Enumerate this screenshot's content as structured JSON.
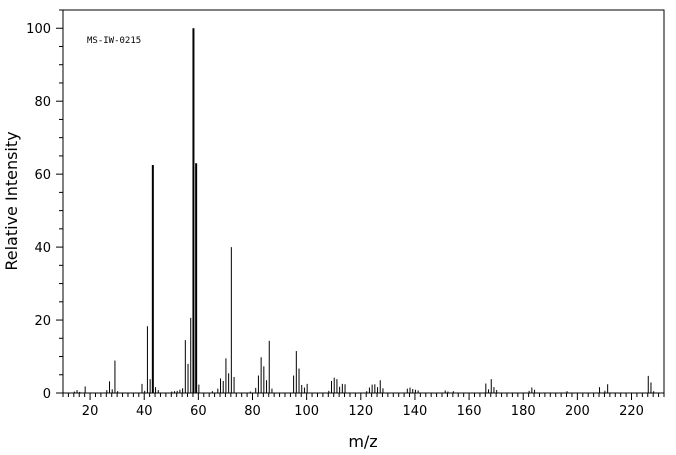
{
  "chart_data": {
    "type": "bar",
    "spectrum_code": "MS-IW-0215",
    "xlabel": "m/z",
    "ylabel": "Relative Intensity",
    "xlim": [
      10,
      232
    ],
    "ylim": [
      0,
      105
    ],
    "x_ticks": [
      20,
      40,
      60,
      80,
      100,
      120,
      140,
      160,
      180,
      200,
      220
    ],
    "y_ticks": [
      0,
      20,
      40,
      60,
      80,
      100
    ],
    "x_minor_step": 2,
    "y_minor_step": 5,
    "grid": false,
    "legend": "none",
    "peaks": [
      {
        "mz": 14,
        "intensity": 0.4
      },
      {
        "mz": 15,
        "intensity": 0.8
      },
      {
        "mz": 16,
        "intensity": 0.3
      },
      {
        "mz": 18,
        "intensity": 1.8
      },
      {
        "mz": 26,
        "intensity": 0.8
      },
      {
        "mz": 27,
        "intensity": 3.2
      },
      {
        "mz": 28,
        "intensity": 1.0
      },
      {
        "mz": 29,
        "intensity": 8.9
      },
      {
        "mz": 30,
        "intensity": 0.5
      },
      {
        "mz": 39,
        "intensity": 2.5
      },
      {
        "mz": 40,
        "intensity": 0.6
      },
      {
        "mz": 41,
        "intensity": 18.3
      },
      {
        "mz": 42,
        "intensity": 3.8
      },
      {
        "mz": 43,
        "intensity": 62.5
      },
      {
        "mz": 44,
        "intensity": 1.6
      },
      {
        "mz": 45,
        "intensity": 0.8
      },
      {
        "mz": 50,
        "intensity": 0.4
      },
      {
        "mz": 51,
        "intensity": 0.5
      },
      {
        "mz": 52,
        "intensity": 0.6
      },
      {
        "mz": 53,
        "intensity": 0.9
      },
      {
        "mz": 54,
        "intensity": 1.3
      },
      {
        "mz": 55,
        "intensity": 14.5
      },
      {
        "mz": 56,
        "intensity": 8.0
      },
      {
        "mz": 57,
        "intensity": 20.6
      },
      {
        "mz": 58,
        "intensity": 100.0
      },
      {
        "mz": 59,
        "intensity": 63.0
      },
      {
        "mz": 60,
        "intensity": 2.3
      },
      {
        "mz": 65,
        "intensity": 0.5
      },
      {
        "mz": 67,
        "intensity": 1.2
      },
      {
        "mz": 68,
        "intensity": 4.0
      },
      {
        "mz": 69,
        "intensity": 3.3
      },
      {
        "mz": 70,
        "intensity": 9.5
      },
      {
        "mz": 71,
        "intensity": 5.4
      },
      {
        "mz": 72,
        "intensity": 40.0
      },
      {
        "mz": 73,
        "intensity": 4.4
      },
      {
        "mz": 79,
        "intensity": 0.4
      },
      {
        "mz": 81,
        "intensity": 1.4
      },
      {
        "mz": 82,
        "intensity": 4.8
      },
      {
        "mz": 83,
        "intensity": 9.8
      },
      {
        "mz": 84,
        "intensity": 7.3
      },
      {
        "mz": 85,
        "intensity": 3.5
      },
      {
        "mz": 86,
        "intensity": 14.3
      },
      {
        "mz": 87,
        "intensity": 1.2
      },
      {
        "mz": 95,
        "intensity": 4.8
      },
      {
        "mz": 96,
        "intensity": 11.5
      },
      {
        "mz": 97,
        "intensity": 6.7
      },
      {
        "mz": 98,
        "intensity": 2.2
      },
      {
        "mz": 99,
        "intensity": 1.5
      },
      {
        "mz": 100,
        "intensity": 2.5
      },
      {
        "mz": 108,
        "intensity": 0.6
      },
      {
        "mz": 109,
        "intensity": 3.3
      },
      {
        "mz": 110,
        "intensity": 4.2
      },
      {
        "mz": 111,
        "intensity": 3.8
      },
      {
        "mz": 112,
        "intensity": 1.7
      },
      {
        "mz": 113,
        "intensity": 2.5
      },
      {
        "mz": 114,
        "intensity": 2.4
      },
      {
        "mz": 122,
        "intensity": 0.5
      },
      {
        "mz": 123,
        "intensity": 1.5
      },
      {
        "mz": 124,
        "intensity": 2.3
      },
      {
        "mz": 125,
        "intensity": 2.4
      },
      {
        "mz": 126,
        "intensity": 1.6
      },
      {
        "mz": 127,
        "intensity": 3.5
      },
      {
        "mz": 128,
        "intensity": 1.3
      },
      {
        "mz": 137,
        "intensity": 1.2
      },
      {
        "mz": 138,
        "intensity": 1.5
      },
      {
        "mz": 139,
        "intensity": 1.1
      },
      {
        "mz": 140,
        "intensity": 0.9
      },
      {
        "mz": 141,
        "intensity": 0.7
      },
      {
        "mz": 151,
        "intensity": 0.7
      },
      {
        "mz": 152,
        "intensity": 0.4
      },
      {
        "mz": 154,
        "intensity": 0.5
      },
      {
        "mz": 166,
        "intensity": 2.6
      },
      {
        "mz": 167,
        "intensity": 1.0
      },
      {
        "mz": 168,
        "intensity": 3.8
      },
      {
        "mz": 169,
        "intensity": 1.6
      },
      {
        "mz": 170,
        "intensity": 0.8
      },
      {
        "mz": 182,
        "intensity": 0.6
      },
      {
        "mz": 183,
        "intensity": 1.5
      },
      {
        "mz": 184,
        "intensity": 0.9
      },
      {
        "mz": 196,
        "intensity": 0.5
      },
      {
        "mz": 208,
        "intensity": 1.6
      },
      {
        "mz": 210,
        "intensity": 0.6
      },
      {
        "mz": 211,
        "intensity": 2.4
      },
      {
        "mz": 226,
        "intensity": 4.7
      },
      {
        "mz": 227,
        "intensity": 2.9
      },
      {
        "mz": 228,
        "intensity": 0.5
      }
    ]
  }
}
